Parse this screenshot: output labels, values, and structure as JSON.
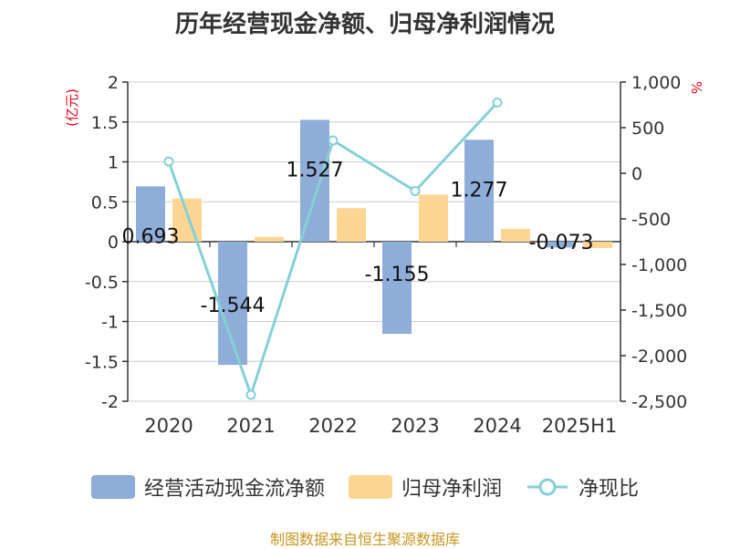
{
  "title": "历年经营现金净额、归母净利润情况",
  "source_note": "制图数据来自恒生聚源数据库",
  "colors": {
    "ocf": "#8eadd8",
    "net_profit": "#fdd693",
    "ratio_line": "#85d0d8",
    "grid": "#cccccc",
    "axis": "#333333",
    "unit": "#e8001c"
  },
  "chart_data": {
    "type": "bar+line",
    "title": "历年经营现金净额、归母净利润情况",
    "categories": [
      "2020",
      "2021",
      "2022",
      "2023",
      "2024",
      "2025H1"
    ],
    "left_axis": {
      "unit_label": "(亿元)",
      "ylim": [
        -2,
        2
      ],
      "ticks": [
        2,
        1.5,
        1,
        0.5,
        0,
        -0.5,
        -1,
        -1.5,
        -2
      ],
      "tick_labels": [
        "2",
        "1.5",
        "1",
        "0.5",
        "0",
        "-0.5",
        "-1",
        "-1.5",
        "-2"
      ]
    },
    "right_axis": {
      "unit_label": "%",
      "ylim": [
        -2500,
        1000
      ],
      "ticks": [
        1000,
        500,
        0,
        -500,
        -1000,
        -1500,
        -2000,
        -2500
      ],
      "tick_labels": [
        "1,000",
        "500",
        "0",
        "-500",
        "-1,000",
        "-1,500",
        "-2,000",
        "-2,500"
      ]
    },
    "series": [
      {
        "name": "经营活动现金流净额",
        "type": "bar",
        "axis": "left",
        "values": [
          0.693,
          -1.544,
          1.527,
          -1.155,
          1.277,
          -0.073
        ],
        "labels": [
          "0.693",
          "-1.544",
          "1.527",
          "-1.155",
          "1.277",
          "-0.073"
        ]
      },
      {
        "name": "归母净利润",
        "type": "bar",
        "axis": "left",
        "values": [
          0.54,
          0.06,
          0.42,
          0.59,
          0.16,
          -0.08
        ]
      },
      {
        "name": "净现比",
        "type": "line",
        "axis": "right",
        "values": [
          128,
          -2430,
          360,
          -195,
          775,
          null
        ]
      }
    ],
    "grid": true,
    "legend_position": "bottom"
  }
}
